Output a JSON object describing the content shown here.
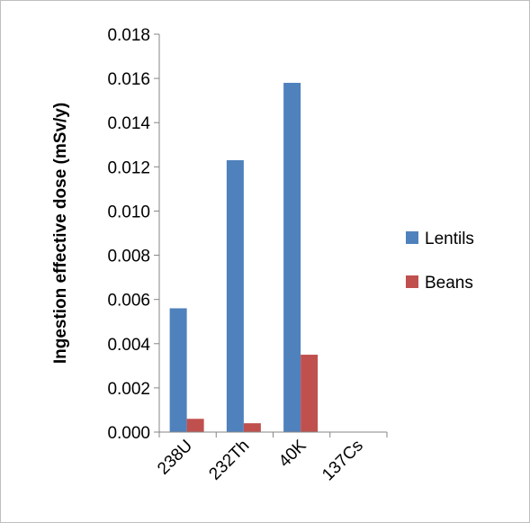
{
  "chart_data": {
    "type": "bar",
    "title": "",
    "xlabel": "",
    "ylabel": "Ingestion effective dose (mSv/y)",
    "categories": [
      "238U",
      "232Th",
      "40K",
      "137Cs"
    ],
    "series": [
      {
        "name": "Lentils",
        "color": "#4f81bd",
        "values": [
          0.0056,
          0.0123,
          0.0158,
          2e-05
        ]
      },
      {
        "name": "Beans",
        "color": "#c0504d",
        "values": [
          0.0006,
          0.0004,
          0.0035,
          0.0
        ]
      }
    ],
    "ylim": [
      0,
      0.018
    ],
    "yticks": [
      "0.000",
      "0.002",
      "0.004",
      "0.006",
      "0.008",
      "0.010",
      "0.012",
      "0.014",
      "0.016",
      "0.018"
    ],
    "grid": false,
    "legend_position": "right"
  }
}
